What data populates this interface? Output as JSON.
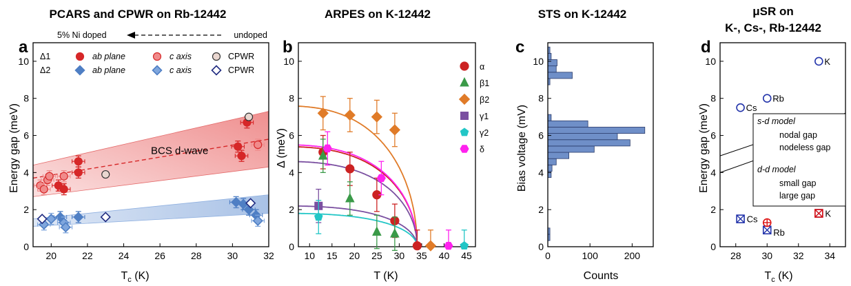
{
  "colors": {
    "delta1": "#d62728",
    "delta1_light": "#f08b8b",
    "delta2": "#4f7fc4",
    "delta2_light": "#7fa6dd",
    "cpwr_dark": "#1f2a80",
    "alpha": "#cc2222",
    "beta1": "#3a9a48",
    "beta2": "#e07b28",
    "gamma1": "#7a4fa0",
    "gamma2": "#22c6c6",
    "delta": "#ff22ee",
    "hist": "#6f8fc8",
    "musr_blue": "#2233aa",
    "musr_red": "#dd1111"
  },
  "chart_data": [
    {
      "panel": "a",
      "type": "scatter",
      "title": "PCARS and CPWR on Rb-12442",
      "top_annotation": {
        "left": "5% Ni doped",
        "right": "undoped"
      },
      "xlabel": "T",
      "xlabel_sub": "c",
      "xlabel_unit": " (K)",
      "ylabel": "Energy gap (meV)",
      "xlim": [
        19,
        32
      ],
      "ylim": [
        0,
        11
      ],
      "xticks": [
        20,
        22,
        24,
        26,
        28,
        30,
        32
      ],
      "yticks": [
        0,
        2,
        4,
        6,
        8,
        10
      ],
      "band_annotation": "BCS d-wave",
      "legend": {
        "d1": "Δ1",
        "d2": "Δ2",
        "ab": "ab plane",
        "c": "c axis",
        "cpwr": "CPWR"
      },
      "bands": [
        {
          "name": "Δ1",
          "x": [
            19,
            32
          ],
          "lower": [
            2.7,
            4.3
          ],
          "upper": [
            4.4,
            7.3
          ],
          "center": [
            3.7,
            5.8
          ]
        },
        {
          "name": "Δ2",
          "x": [
            19,
            32
          ],
          "lower": [
            1.1,
            1.8
          ],
          "upper": [
            1.5,
            2.8
          ]
        }
      ],
      "series": [
        {
          "name": "Δ1 ab plane",
          "points": [
            [
              20.7,
              3.1
            ],
            [
              20.4,
              3.3
            ],
            [
              21.5,
              4.6
            ],
            [
              21.5,
              4.0
            ],
            [
              30.3,
              5.4
            ],
            [
              30.5,
              4.9
            ],
            [
              30.8,
              6.7
            ]
          ]
        },
        {
          "name": "Δ1 c axis",
          "points": [
            [
              19.4,
              3.3
            ],
            [
              19.6,
              3.1
            ],
            [
              19.8,
              3.6
            ],
            [
              19.9,
              3.8
            ],
            [
              20.7,
              3.8
            ],
            [
              31.4,
              5.5
            ]
          ]
        },
        {
          "name": "Δ1 CPWR",
          "points": [
            [
              23.0,
              3.9
            ],
            [
              30.9,
              7.0
            ]
          ]
        },
        {
          "name": "Δ2 ab plane",
          "points": [
            [
              20.5,
              1.6
            ],
            [
              21.5,
              1.6
            ],
            [
              30.2,
              2.4
            ],
            [
              30.6,
              2.3
            ],
            [
              30.9,
              2.0
            ],
            [
              31.3,
              1.7
            ]
          ]
        },
        {
          "name": "Δ2 c axis",
          "points": [
            [
              19.6,
              1.2
            ],
            [
              20.0,
              1.5
            ],
            [
              20.7,
              1.3
            ],
            [
              20.8,
              1.05
            ],
            [
              31.4,
              1.4
            ]
          ]
        },
        {
          "name": "Δ2 CPWR",
          "points": [
            [
              19.5,
              1.5
            ],
            [
              23.0,
              1.6
            ],
            [
              31.0,
              2.35
            ]
          ]
        }
      ]
    },
    {
      "panel": "b",
      "type": "scatter",
      "title": "ARPES on K-12442",
      "xlabel": "T (K)",
      "ylabel": "Δ (meV)",
      "xlim": [
        7.5,
        47
      ],
      "ylim": [
        0,
        11
      ],
      "xticks": [
        10,
        15,
        20,
        25,
        30,
        35,
        40,
        45
      ],
      "yticks": [
        0,
        2,
        4,
        6,
        8,
        10
      ],
      "Tc": 34,
      "series": [
        {
          "name": "α",
          "points": [
            [
              13,
              5.1
            ],
            [
              19,
              4.2
            ],
            [
              25,
              2.8
            ],
            [
              29,
              1.4
            ],
            [
              34,
              0.05
            ]
          ],
          "fit_delta0": 5.4
        },
        {
          "name": "β1",
          "points": [
            [
              13,
              4.9
            ],
            [
              19,
              2.6
            ],
            [
              25,
              0.8
            ],
            [
              29,
              0.7
            ]
          ],
          "fit_delta0": null
        },
        {
          "name": "β2",
          "points": [
            [
              13,
              7.2
            ],
            [
              19,
              7.1
            ],
            [
              25,
              7.0
            ],
            [
              29,
              6.3
            ],
            [
              37,
              0.05
            ]
          ],
          "fit_delta0": 7.6
        },
        {
          "name": "γ1",
          "points": [
            [
              12,
              2.2
            ]
          ],
          "fit_delta0": 2.2
        },
        {
          "name": "γ2",
          "points": [
            [
              12,
              1.6
            ],
            [
              44.5,
              0.05
            ]
          ],
          "fit_delta0": 1.8
        },
        {
          "name": "δ",
          "points": [
            [
              14,
              5.3
            ],
            [
              26,
              3.7
            ],
            [
              41,
              0.05
            ]
          ],
          "fit_delta0": 5.5
        }
      ],
      "extra_fit": {
        "delta0": 4.6
      }
    },
    {
      "panel": "c",
      "type": "bar",
      "orientation": "horizontal",
      "title": "STS on K-12442",
      "xlabel": "Counts",
      "ylabel": "Bias voltage (mV)",
      "xlim": [
        0,
        250
      ],
      "ylim": [
        0,
        11
      ],
      "xticks": [
        0,
        100,
        200
      ],
      "yticks": [
        0,
        2,
        4,
        6,
        8,
        10
      ],
      "bin_width": 0.34,
      "bins": [
        [
          0.5,
          5
        ],
        [
          0.84,
          5
        ],
        [
          3.9,
          8
        ],
        [
          4.24,
          10
        ],
        [
          4.58,
          20
        ],
        [
          4.92,
          50
        ],
        [
          5.26,
          110
        ],
        [
          5.6,
          195
        ],
        [
          5.94,
          165
        ],
        [
          6.28,
          230
        ],
        [
          6.62,
          95
        ],
        [
          6.96,
          8
        ],
        [
          8.9,
          5
        ],
        [
          9.24,
          58
        ],
        [
          9.58,
          20
        ],
        [
          9.92,
          22
        ],
        [
          10.26,
          8
        ],
        [
          10.6,
          5
        ]
      ]
    },
    {
      "panel": "d",
      "type": "scatter",
      "title": "μSR on",
      "title_line2": "K-, Cs-, Rb-12442",
      "xlabel": "T",
      "xlabel_sub": "c",
      "xlabel_unit": " (K)",
      "ylabel": "Energy gap (meV)",
      "xlim": [
        27,
        35
      ],
      "ylim": [
        0,
        11
      ],
      "xticks": [
        28,
        30,
        32,
        34
      ],
      "yticks": [
        0,
        2,
        4,
        6,
        8,
        10
      ],
      "legend": {
        "sd_model": "s-d model",
        "nodal": "nodal gap",
        "nodeless": "nodeless gap",
        "dd_model": "d-d model",
        "small": "small gap",
        "large": "large gap"
      },
      "series": [
        {
          "name": "nodeless gap",
          "points": [
            [
              33.3,
              10.0,
              "K"
            ],
            [
              30.0,
              8.0,
              "Rb"
            ],
            [
              28.3,
              7.5,
              "Cs"
            ]
          ]
        },
        {
          "name": "nodal gap",
          "points": [
            [
              28.3,
              1.5,
              "Cs"
            ],
            [
              30.0,
              0.9,
              "Rb"
            ],
            [
              33.3,
              1.8,
              "K"
            ]
          ]
        },
        {
          "name": "small gap",
          "points": [
            [
              30.0,
              1.3,
              ""
            ]
          ]
        },
        {
          "name": "large gap",
          "points": [
            [
              33.3,
              1.8,
              ""
            ]
          ]
        }
      ]
    }
  ]
}
